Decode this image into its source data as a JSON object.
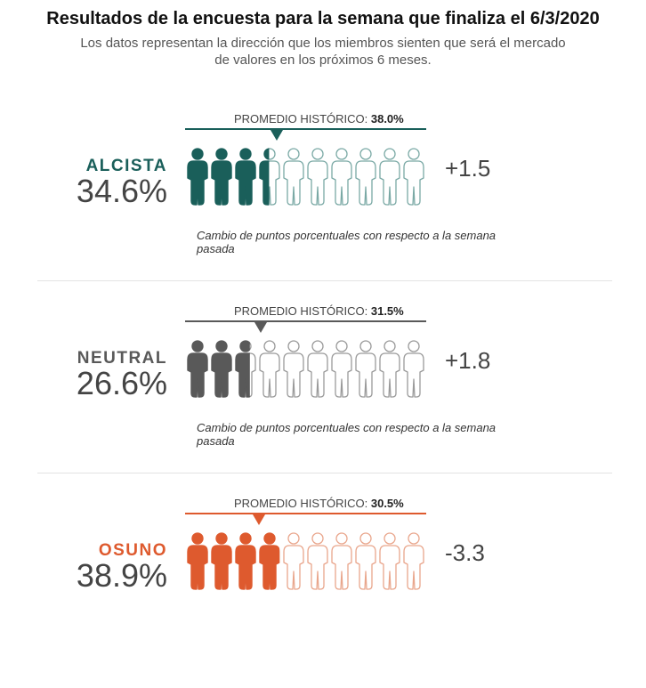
{
  "header": {
    "title": "Resultados de la encuesta para la semana que finaliza el 6/3/2020",
    "subtitle": "Los datos representan la dirección que los miembros sienten que será el mercado de valores en los próximos 6 meses."
  },
  "avg_prefix": "PROMEDIO HISTÓRICO:",
  "icon": "person-icon",
  "sections": [
    {
      "name": "ALCISTA",
      "percent": "34.6%",
      "percent_value": 34.6,
      "historical_avg": "38.0%",
      "historical_value": 38.0,
      "change": "+1.5",
      "note": "Cambio de puntos porcentuales con respecto a la semana pasada",
      "color": "#1a5f5a",
      "outline_color": "#7aa9a5"
    },
    {
      "name": "NEUTRAL",
      "percent": "26.6%",
      "percent_value": 26.6,
      "historical_avg": "31.5%",
      "historical_value": 31.5,
      "change": "+1.8",
      "note": "Cambio de puntos porcentuales con respecto a la semana pasada",
      "color": "#595959",
      "outline_color": "#9a9a9a"
    },
    {
      "name": "OSUNO",
      "percent": "38.9%",
      "percent_value": 38.9,
      "historical_avg": "30.5%",
      "historical_value": 30.5,
      "change": "-3.3",
      "note": "",
      "color": "#de5a2e",
      "outline_color": "#e9a68c"
    }
  ]
}
